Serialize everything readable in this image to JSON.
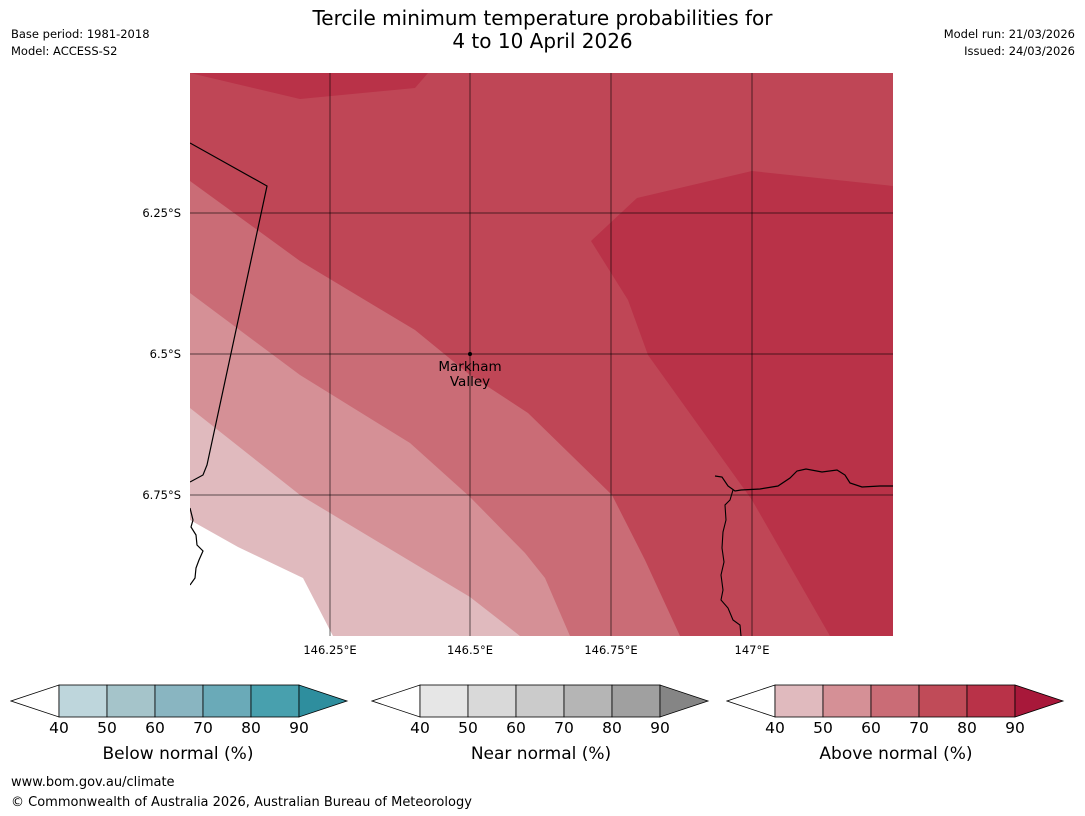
{
  "header": {
    "title_line1": "Tercile minimum temperature probabilities for",
    "title_line2": "4 to 10 April 2026",
    "base_period": "Base period: 1981-2018",
    "model": "Model: ACCESS-S2",
    "model_run": "Model run: 21/03/2026",
    "issued": "Issued: 24/03/2026"
  },
  "map": {
    "lat_labels": [
      "6.25°S",
      "6.5°S",
      "6.75°S"
    ],
    "lon_labels": [
      "146.25°E",
      "146.5°E",
      "146.75°E",
      "147°E"
    ],
    "place": {
      "line1": "Markham",
      "line2": "Valley"
    }
  },
  "legend": {
    "ticks": [
      "40",
      "50",
      "60",
      "70",
      "80",
      "90"
    ],
    "below": {
      "label": "Below normal (%)",
      "colors": [
        "#bed6dc",
        "#a5c4ca",
        "#89b5c1",
        "#6aaab8",
        "#48a0ae",
        "#2e8e9e"
      ]
    },
    "near": {
      "label": "Near normal (%)",
      "colors": [
        "#e6e6e6",
        "#d9d9d9",
        "#cbcbcb",
        "#b5b5b5",
        "#a0a0a0",
        "#858585"
      ]
    },
    "above": {
      "label": "Above normal (%)",
      "colors": [
        "#e0babe",
        "#d59096",
        "#ca6c76",
        "#c04b58",
        "#b93248",
        "#a8183a"
      ]
    }
  },
  "footer": {
    "url": "www.bom.gov.au/climate",
    "copyright": "© Commonwealth of Australia 2026, Australian Bureau of Meteorology"
  }
}
